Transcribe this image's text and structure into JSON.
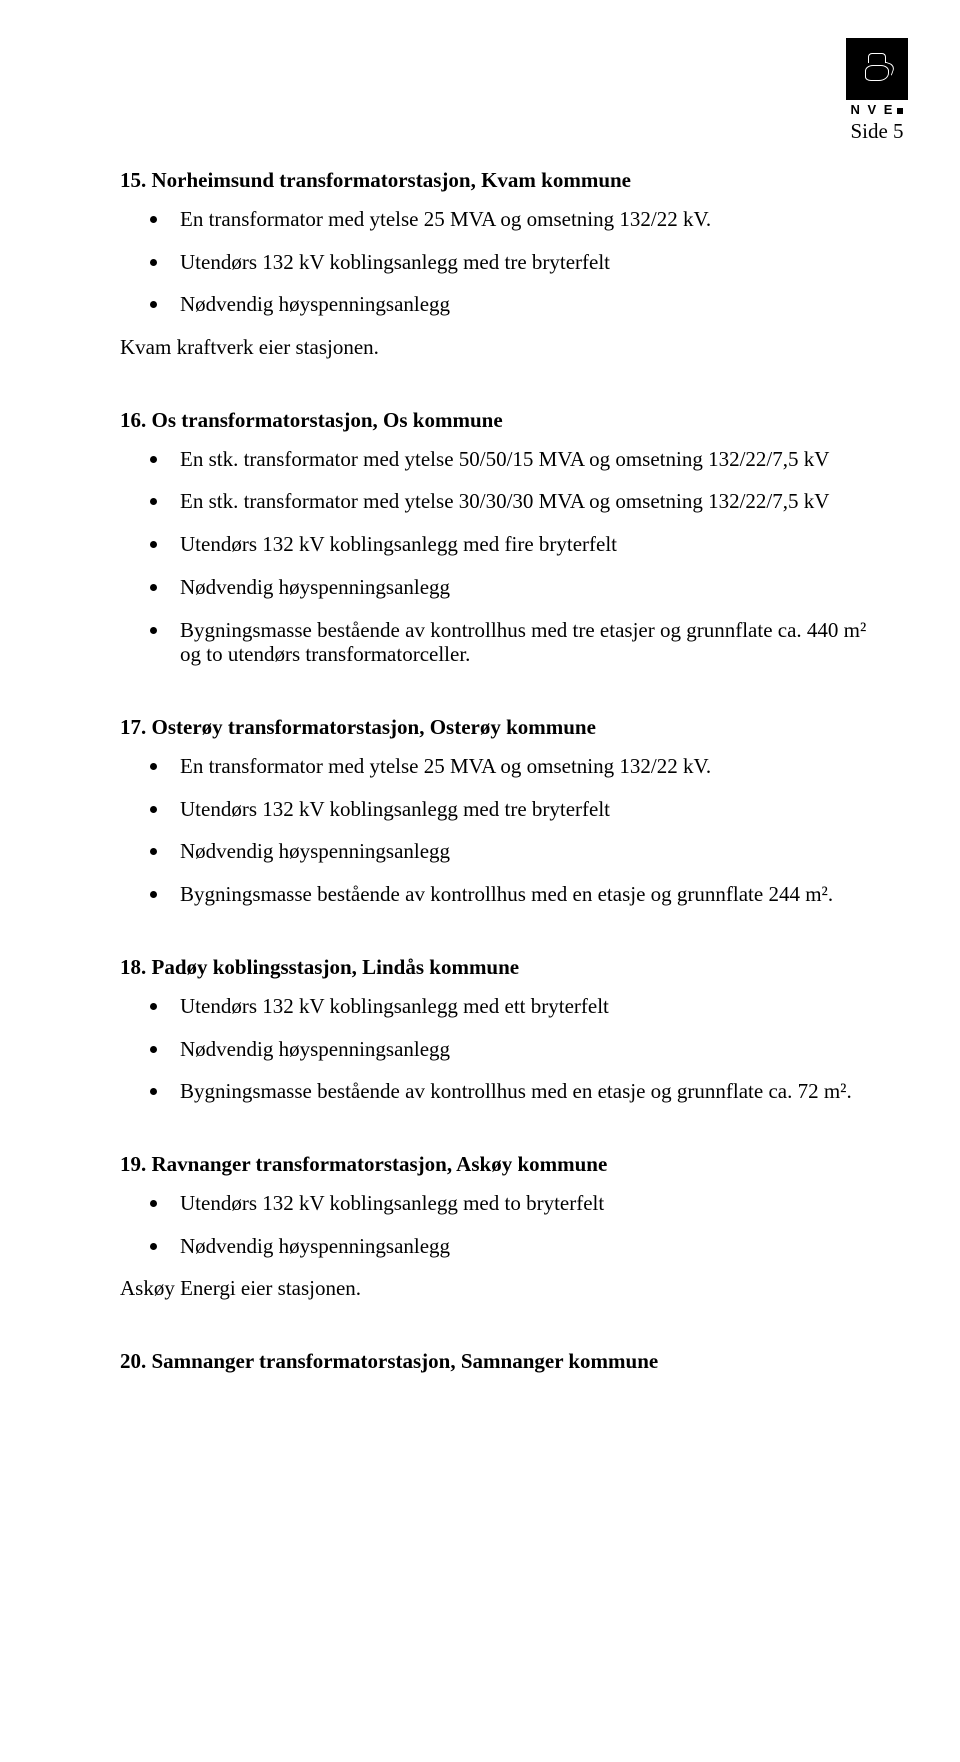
{
  "header": {
    "org_abbr": "N V E",
    "page_label": "Side 5"
  },
  "sections": [
    {
      "title": "15. Norheimsund transformatorstasjon, Kvam kommune",
      "bullets": [
        "En transformator med ytelse 25 MVA og omsetning 132/22 kV.",
        "Utendørs 132 kV koblingsanlegg med tre bryterfelt",
        "Nødvendig høyspenningsanlegg"
      ],
      "trail": "Kvam kraftverk eier stasjonen."
    },
    {
      "title": "16. Os transformatorstasjon, Os kommune",
      "bullets": [
        "En stk. transformator med ytelse 50/50/15 MVA og omsetning 132/22/7,5 kV",
        "En stk. transformator med ytelse 30/30/30 MVA og omsetning 132/22/7,5 kV",
        "Utendørs 132 kV koblingsanlegg med fire bryterfelt",
        "Nødvendig høyspenningsanlegg",
        "Bygningsmasse bestående av kontrollhus med tre etasjer og grunnflate ca. 440 m² og to utendørs transformatorceller."
      ]
    },
    {
      "title": "17. Osterøy transformatorstasjon, Osterøy kommune",
      "bullets": [
        "En transformator med ytelse 25 MVA og omsetning 132/22 kV.",
        "Utendørs 132 kV koblingsanlegg med tre bryterfelt",
        "Nødvendig høyspenningsanlegg",
        "Bygningsmasse bestående av kontrollhus med en etasje og grunnflate 244 m²."
      ]
    },
    {
      "title": "18. Padøy koblingsstasjon, Lindås kommune",
      "bullets": [
        "Utendørs 132 kV koblingsanlegg med ett bryterfelt",
        "Nødvendig høyspenningsanlegg",
        "Bygningsmasse bestående av kontrollhus med en etasje og grunnflate ca. 72 m²."
      ]
    },
    {
      "title": "19. Ravnanger transformatorstasjon, Askøy kommune",
      "bullets": [
        "Utendørs 132 kV koblingsanlegg med to bryterfelt",
        "Nødvendig høyspenningsanlegg"
      ],
      "trail": "Askøy Energi eier stasjonen."
    },
    {
      "title": "20. Samnanger transformatorstasjon, Samnanger kommune"
    }
  ]
}
